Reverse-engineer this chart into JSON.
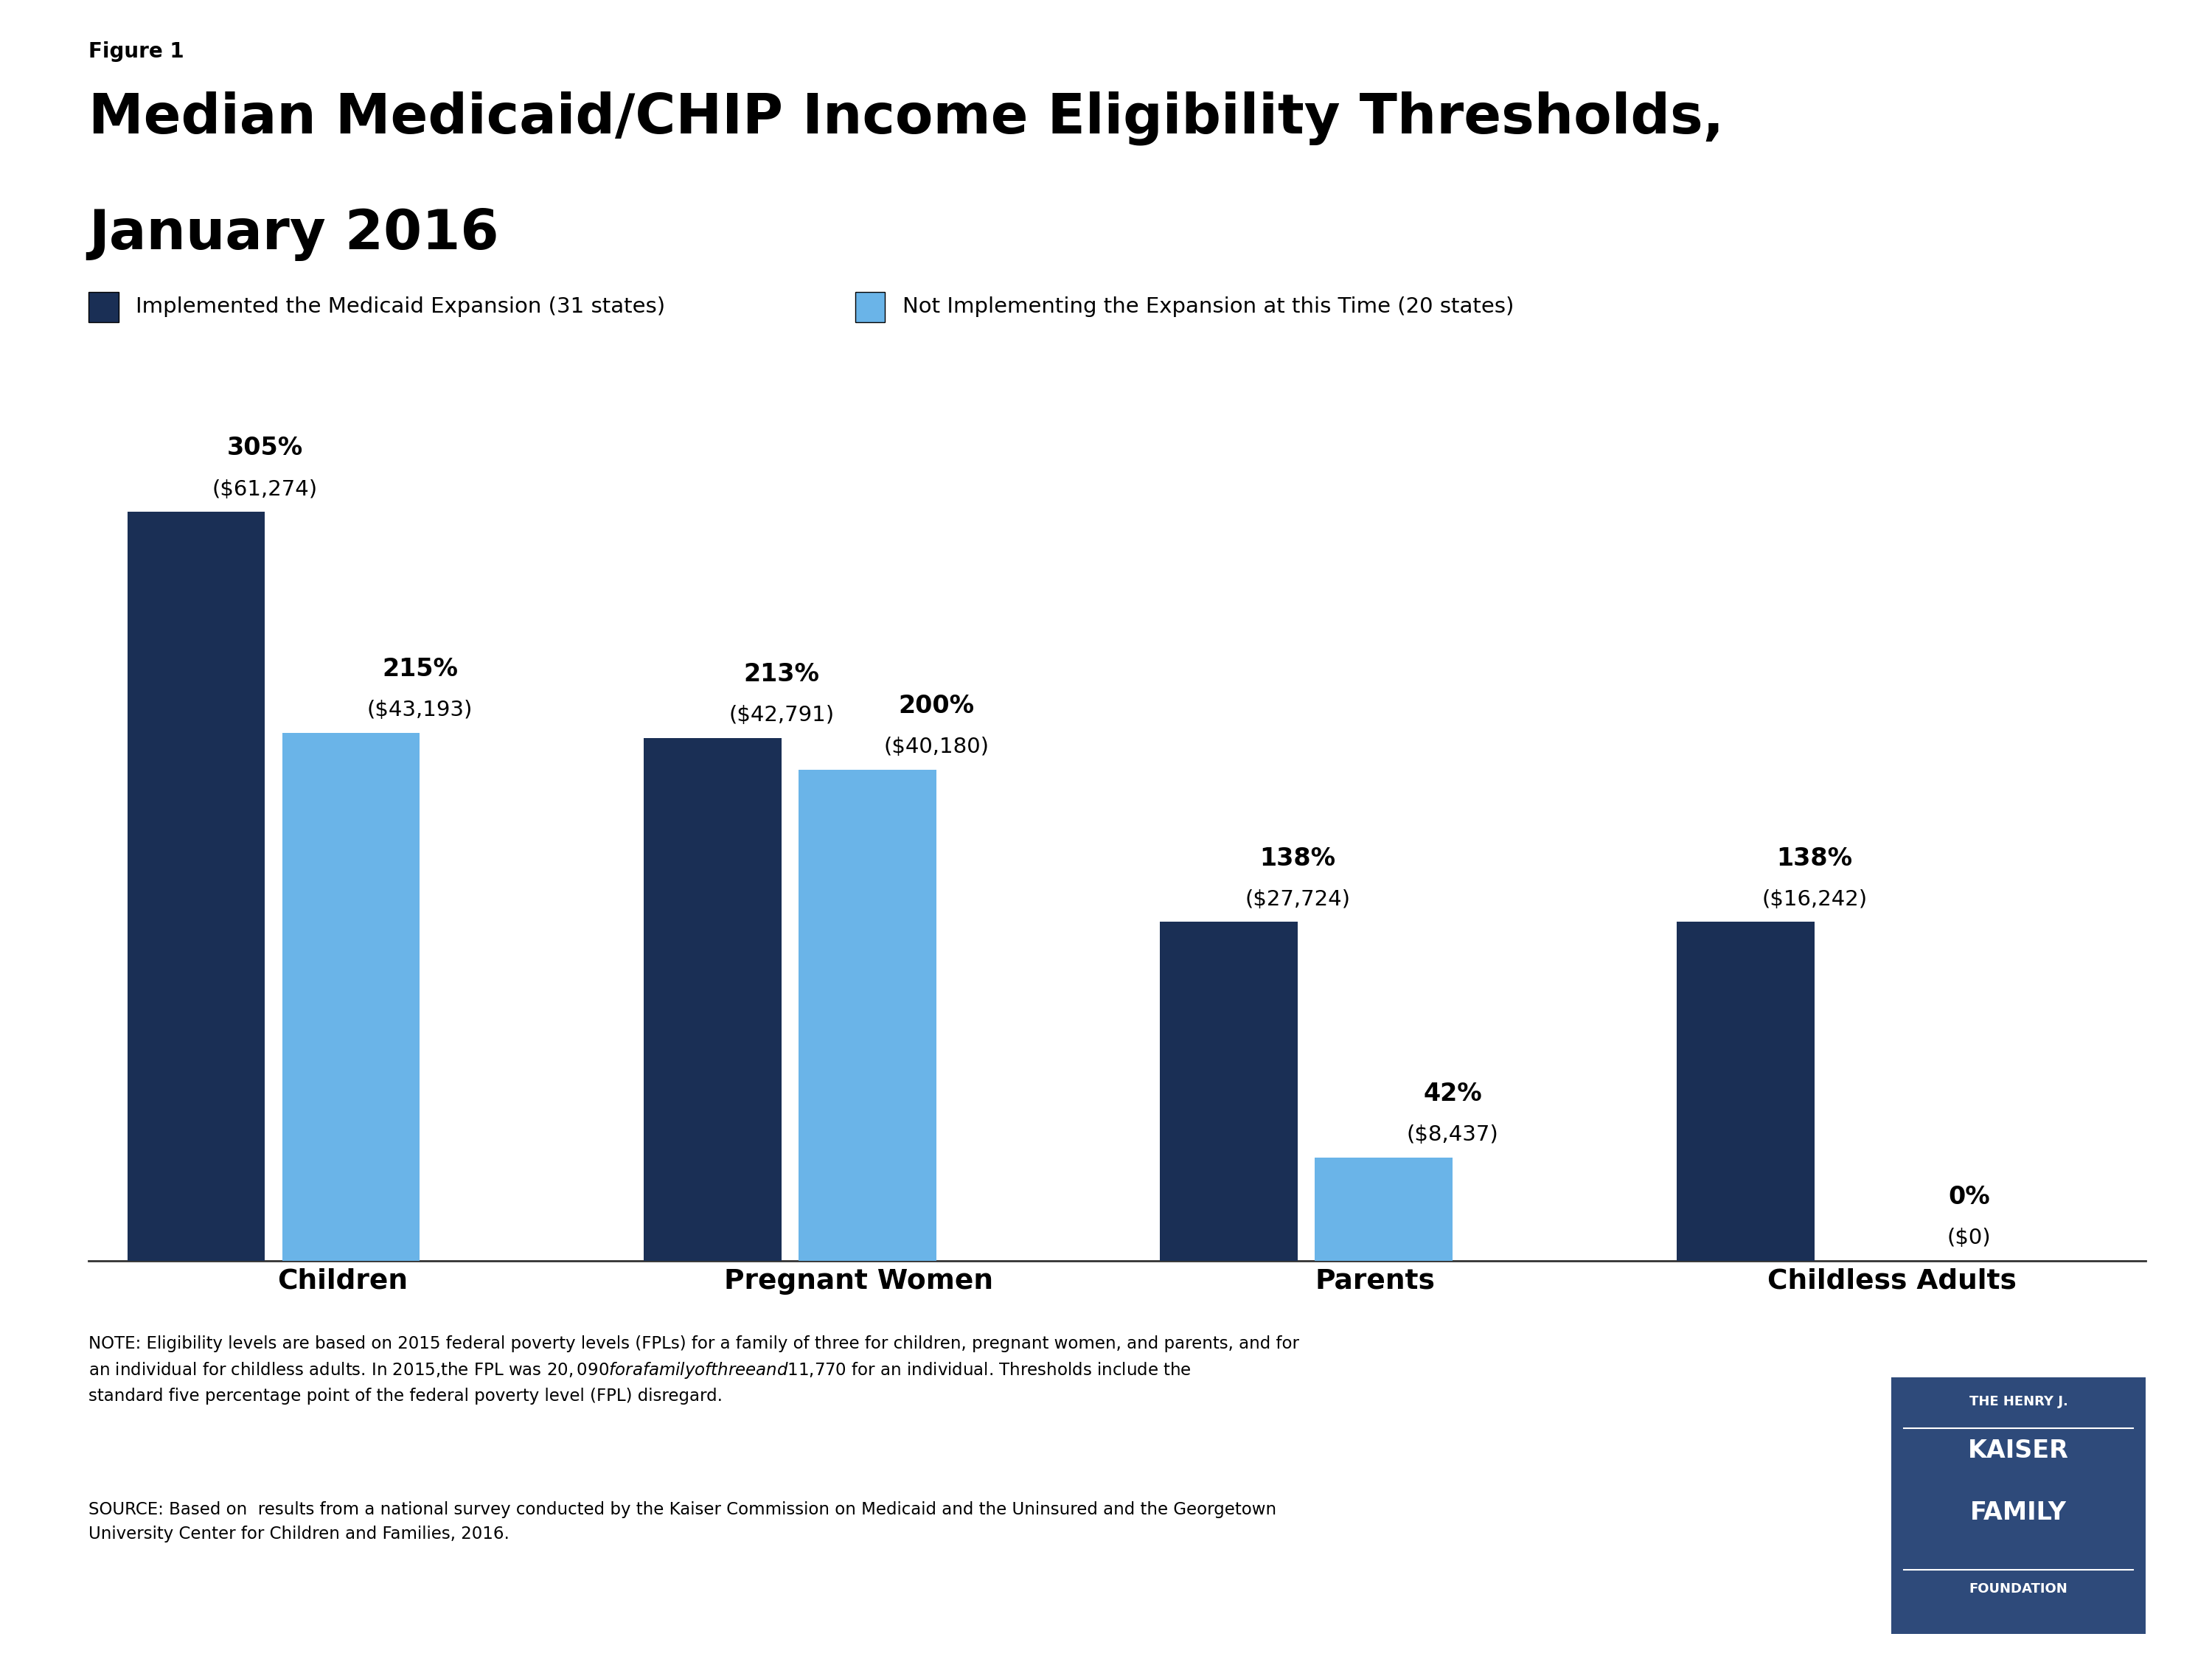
{
  "figure_label": "Figure 1",
  "title_line1": "Median Medicaid/CHIP Income Eligibility Thresholds,",
  "title_line2": "January 2016",
  "legend_dark": "Implemented the Medicaid Expansion (31 states)",
  "legend_light": "Not Implementing the Expansion at this Time (20 states)",
  "categories": [
    "Children",
    "Pregnant Women",
    "Parents",
    "Childless Adults"
  ],
  "dark_values": [
    305,
    213,
    138,
    138
  ],
  "light_values": [
    215,
    200,
    42,
    0
  ],
  "dark_labels_pct": [
    "305%",
    "213%",
    "138%",
    "138%"
  ],
  "dark_labels_dollar": [
    "($61,274)",
    "($42,791)",
    "($27,724)",
    "($16,242)"
  ],
  "light_labels_pct": [
    "215%",
    "200%",
    "42%",
    "0%"
  ],
  "light_labels_dollar": [
    "($43,193)",
    "($40,180)",
    "($8,437)",
    "($0)"
  ],
  "dark_color": "#1a2f55",
  "light_color": "#6ab4e8",
  "background_color": "#ffffff",
  "note_text": "NOTE: Eligibility levels are based on 2015 federal poverty levels (FPLs) for a family of three for children, pregnant women, and parents, and for\nan individual for childless adults. In 2015,the FPL was $20,090 for a family of three and $11,770 for an individual. Thresholds include the\nstandard five percentage point of the federal poverty level (FPL) disregard.",
  "source_text": "SOURCE: Based on  results from a national survey conducted by the Kaiser Commission on Medicaid and the Uninsured and the Georgetown\nUniversity Center for Children and Families, 2016.",
  "kaiser_box_color": "#2e4a7a"
}
